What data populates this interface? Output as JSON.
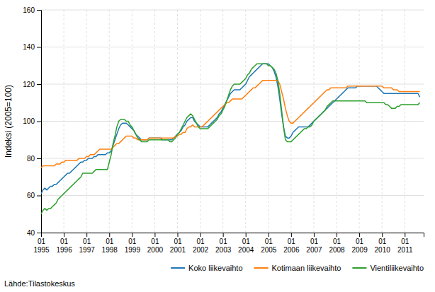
{
  "chart_data": {
    "type": "line",
    "ylabel": "Indeksi (2005=100)",
    "annotations": [
      "Lähde:Tilastokeskus"
    ],
    "ylim": [
      40,
      160
    ],
    "yticks": [
      40,
      60,
      80,
      100,
      120,
      140,
      160
    ],
    "grid": true,
    "legend": "bottom",
    "categories": [
      "01\n1995",
      null,
      null,
      null,
      null,
      null,
      null,
      null,
      null,
      null,
      null,
      null,
      "01\n1996",
      null,
      null,
      null,
      null,
      null,
      null,
      null,
      null,
      null,
      null,
      null,
      "01\n1997",
      null,
      null,
      null,
      null,
      null,
      null,
      null,
      null,
      null,
      null,
      null,
      "01\n1998",
      null,
      null,
      null,
      null,
      null,
      null,
      null,
      null,
      null,
      null,
      null,
      "01\n1999",
      null,
      null,
      null,
      null,
      null,
      null,
      null,
      null,
      null,
      null,
      null,
      "01\n2000",
      null,
      null,
      null,
      null,
      null,
      null,
      null,
      null,
      null,
      null,
      null,
      "01\n2001",
      null,
      null,
      null,
      null,
      null,
      null,
      null,
      null,
      null,
      null,
      null,
      "01\n2002",
      null,
      null,
      null,
      null,
      null,
      null,
      null,
      null,
      null,
      null,
      null,
      "01\n2003",
      null,
      null,
      null,
      null,
      null,
      null,
      null,
      null,
      null,
      null,
      null,
      "01\n2004",
      null,
      null,
      null,
      null,
      null,
      null,
      null,
      null,
      null,
      null,
      null,
      "01\n2005",
      null,
      null,
      null,
      null,
      null,
      null,
      null,
      null,
      null,
      null,
      null,
      "01\n2006",
      null,
      null,
      null,
      null,
      null,
      null,
      null,
      null,
      null,
      null,
      null,
      "01\n2007",
      null,
      null,
      null,
      null,
      null,
      null,
      null,
      null,
      null,
      null,
      null,
      "01\n2008",
      null,
      null,
      null,
      null,
      null,
      null,
      null,
      null,
      null,
      null,
      null,
      "01\n2009",
      null,
      null,
      null,
      null,
      null,
      null,
      null,
      null,
      null,
      null,
      null,
      "01\n2010",
      null,
      null,
      null,
      null,
      null,
      null,
      null,
      null,
      null,
      null,
      null,
      "01\n2011",
      null,
      null,
      null,
      null,
      null,
      null,
      null,
      null,
      null,
      null
    ],
    "series": [
      {
        "name": "Koko liikevaihto",
        "values": [
          61,
          63,
          64,
          63,
          64,
          65,
          65,
          66,
          66,
          67,
          68,
          69,
          70,
          71,
          72,
          72,
          73,
          74,
          75,
          76,
          77,
          78,
          78,
          79,
          79,
          80,
          80,
          80,
          81,
          81,
          82,
          82,
          82,
          82,
          82,
          83,
          83,
          84,
          87,
          90,
          93,
          96,
          98,
          99,
          99,
          99,
          98,
          97,
          96,
          95,
          93,
          92,
          91,
          90,
          90,
          90,
          90,
          91,
          91,
          91,
          91,
          91,
          91,
          91,
          90,
          90,
          90,
          90,
          90,
          90,
          91,
          92,
          93,
          94,
          95,
          97,
          98,
          100,
          101,
          102,
          102,
          100,
          99,
          98,
          97,
          97,
          97,
          97,
          97,
          98,
          99,
          100,
          101,
          102,
          104,
          105,
          107,
          109,
          111,
          113,
          115,
          116,
          117,
          117,
          117,
          117,
          118,
          119,
          120,
          122,
          124,
          125,
          126,
          127,
          128,
          129,
          130,
          131,
          131,
          131,
          131,
          130,
          129,
          127,
          124,
          119,
          112,
          104,
          97,
          92,
          91,
          91,
          92,
          94,
          95,
          96,
          97,
          97,
          97,
          97,
          97,
          97,
          98,
          99,
          100,
          101,
          102,
          103,
          104,
          105,
          106,
          107,
          108,
          109,
          110,
          111,
          112,
          113,
          114,
          115,
          116,
          117,
          118,
          118,
          118,
          118,
          118,
          119,
          119,
          119,
          119,
          119,
          119,
          119,
          119,
          119,
          119,
          119,
          118,
          117,
          116,
          115,
          115,
          115,
          115,
          115,
          115,
          115,
          115,
          115,
          115,
          115,
          115,
          115,
          115,
          115,
          115,
          115,
          115,
          115,
          113,
          null,
          null
        ]
      },
      {
        "name": "Kotimaan liikevaihto",
        "values": [
          75,
          76,
          76,
          76,
          76,
          76,
          76,
          76,
          77,
          77,
          77,
          78,
          78,
          79,
          79,
          79,
          79,
          79,
          79,
          79,
          80,
          80,
          80,
          80,
          81,
          81,
          82,
          82,
          82,
          83,
          84,
          85,
          85,
          85,
          85,
          85,
          85,
          85,
          86,
          87,
          88,
          88,
          89,
          90,
          91,
          92,
          92,
          92,
          92,
          91,
          91,
          90,
          90,
          90,
          90,
          90,
          90,
          91,
          91,
          91,
          91,
          91,
          91,
          91,
          91,
          91,
          91,
          91,
          91,
          91,
          91,
          92,
          92,
          93,
          93,
          94,
          94,
          96,
          97,
          97,
          98,
          97,
          97,
          97,
          97,
          97,
          98,
          99,
          100,
          101,
          102,
          103,
          104,
          105,
          106,
          107,
          108,
          109,
          110,
          110,
          111,
          112,
          112,
          112,
          112,
          112,
          112,
          113,
          114,
          115,
          116,
          117,
          118,
          118,
          119,
          120,
          121,
          122,
          122,
          122,
          122,
          122,
          122,
          122,
          122,
          122,
          120,
          116,
          112,
          107,
          103,
          100,
          99,
          99,
          100,
          101,
          102,
          103,
          104,
          105,
          106,
          107,
          108,
          109,
          110,
          111,
          112,
          113,
          114,
          115,
          116,
          117,
          117,
          118,
          118,
          118,
          118,
          118,
          118,
          118,
          118,
          118,
          119,
          119,
          119,
          119,
          119,
          119,
          119,
          119,
          119,
          119,
          119,
          119,
          119,
          119,
          119,
          119,
          119,
          119,
          119,
          118,
          118,
          118,
          118,
          118,
          117,
          117,
          117,
          116,
          116,
          116,
          116,
          116,
          116,
          116,
          116,
          116,
          116,
          116,
          116,
          null,
          null
        ]
      },
      {
        "name": "Vientiliikevaihto",
        "values": [
          50,
          52,
          53,
          52,
          53,
          53,
          54,
          55,
          56,
          58,
          59,
          60,
          61,
          62,
          63,
          64,
          65,
          66,
          67,
          68,
          69,
          70,
          72,
          72,
          72,
          72,
          72,
          72,
          73,
          74,
          74,
          74,
          74,
          74,
          74,
          74,
          78,
          82,
          88,
          92,
          97,
          100,
          101,
          101,
          101,
          100,
          100,
          98,
          97,
          95,
          93,
          91,
          90,
          89,
          89,
          89,
          89,
          90,
          90,
          90,
          90,
          90,
          90,
          90,
          90,
          90,
          90,
          90,
          89,
          89,
          90,
          91,
          93,
          94,
          96,
          98,
          100,
          102,
          103,
          104,
          103,
          101,
          99,
          97,
          96,
          96,
          96,
          96,
          96,
          97,
          98,
          99,
          100,
          101,
          103,
          104,
          106,
          108,
          111,
          114,
          117,
          119,
          120,
          120,
          120,
          120,
          121,
          122,
          123,
          125,
          126,
          128,
          129,
          130,
          131,
          131,
          131,
          131,
          131,
          131,
          130,
          130,
          129,
          128,
          126,
          122,
          115,
          106,
          97,
          90,
          89,
          89,
          89,
          90,
          91,
          92,
          93,
          94,
          95,
          96,
          96,
          97,
          97,
          98,
          100,
          101,
          102,
          103,
          104,
          105,
          106,
          108,
          109,
          110,
          111,
          111,
          111,
          111,
          111,
          111,
          111,
          111,
          111,
          111,
          111,
          111,
          111,
          111,
          111,
          111,
          111,
          111,
          110,
          110,
          110,
          110,
          110,
          110,
          110,
          110,
          110,
          110,
          109,
          109,
          108,
          107,
          107,
          107,
          108,
          108,
          109,
          109,
          109,
          109,
          109,
          109,
          109,
          109,
          109,
          109,
          110,
          null,
          null
        ]
      }
    ]
  }
}
